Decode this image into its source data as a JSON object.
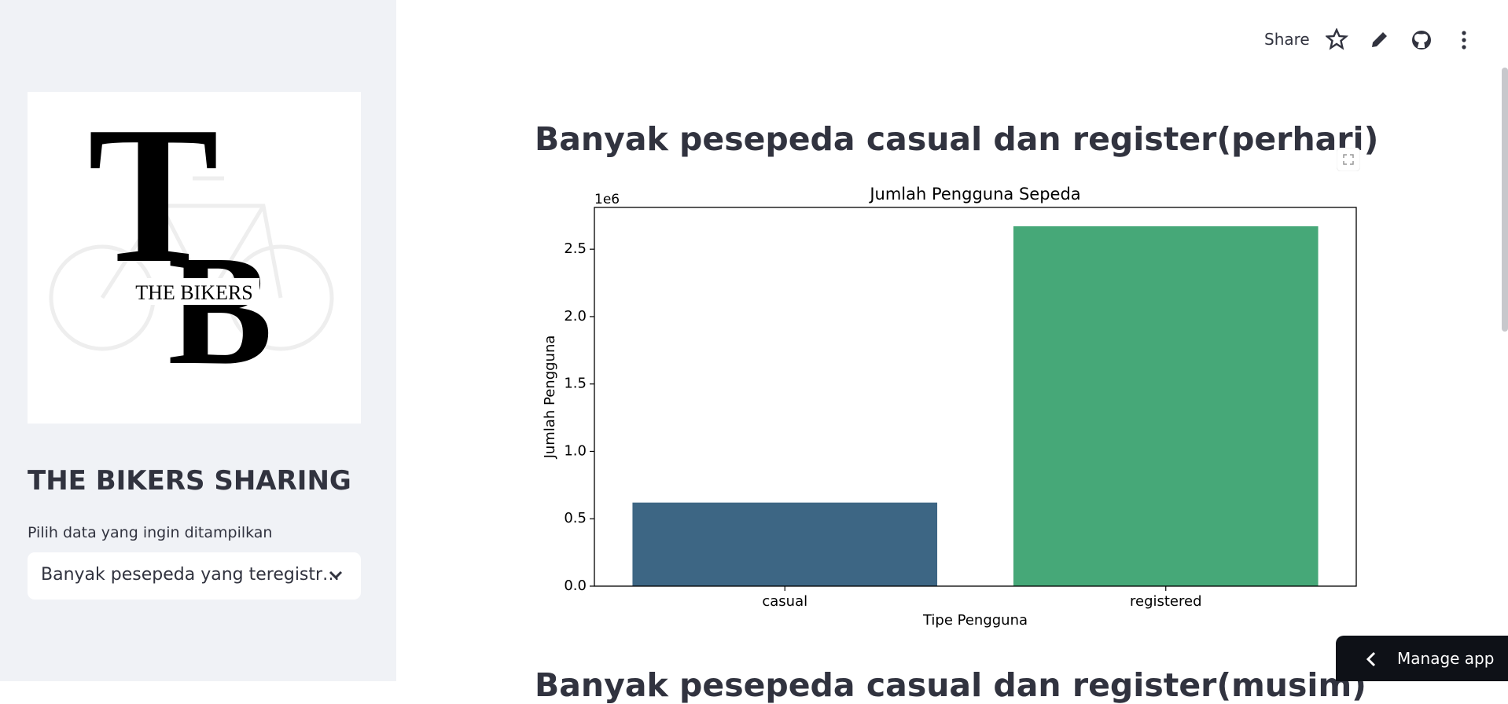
{
  "header": {
    "share": "Share"
  },
  "sidebar": {
    "logo": {
      "monogram": [
        "T",
        "B"
      ],
      "text": "THE BIKERS"
    },
    "title": "THE BIKERS SHARING",
    "select_label": "Pilih data yang ingin ditampilkan",
    "select_value": "Banyak pesepeda yang teregistr…"
  },
  "main": {
    "heading": "Banyak pesepeda casual dan register(perhari)",
    "next_heading": "Banyak pesepeda casual dan register(musim)"
  },
  "chart_data": {
    "type": "bar",
    "title": "Jumlah Pengguna Sepeda",
    "x_label": "Tipe Pengguna",
    "y_label": "Jumlah Pengguna",
    "y_offset_label": "1e6",
    "categories": [
      "casual",
      "registered"
    ],
    "values": [
      0.62,
      2.67
    ],
    "colors": [
      "#3d6684",
      "#46a878"
    ],
    "ylim": [
      0,
      2.81
    ],
    "yticks": [
      {
        "value": 0,
        "label": "0.0"
      },
      0.5,
      {
        "value": 1,
        "label": "1.0"
      },
      1.5,
      {
        "value": 2,
        "label": "2.0"
      },
      2.5
    ],
    "grid": false
  },
  "footer": {
    "manage_app": "Manage app"
  }
}
